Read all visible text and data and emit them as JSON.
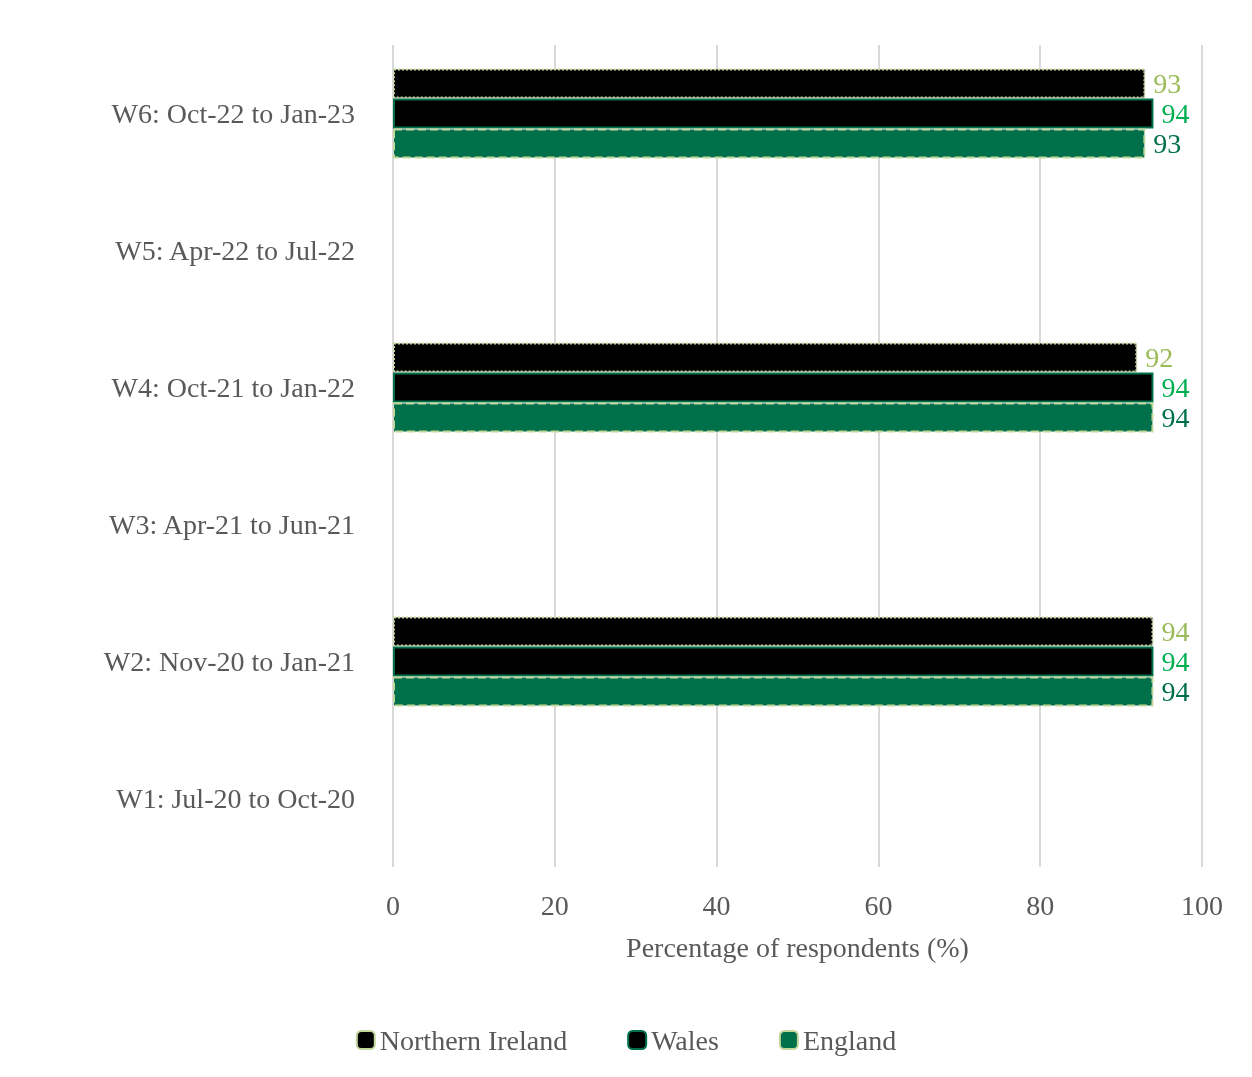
{
  "chart_data": {
    "type": "bar",
    "orientation": "horizontal",
    "xlabel": "Percentage of respondents (%)",
    "categories": [
      "W6: Oct-22 to Jan-23",
      "W5: Apr-22 to Jul-22",
      "W4: Oct-21 to Jan-22",
      "W3: Apr-21 to Jun-21",
      "W2: Nov-20 to Jan-21",
      "W1: Jul-20 to Oct-20"
    ],
    "series": [
      {
        "name": "Northern Ireland",
        "color": "#000000",
        "values": [
          93,
          null,
          92,
          null,
          94,
          null
        ]
      },
      {
        "name": "Wales",
        "color": "#000000",
        "values": [
          94,
          null,
          94,
          null,
          94,
          null
        ]
      },
      {
        "name": "England",
        "color": "#00704a",
        "values": [
          93,
          null,
          94,
          null,
          94,
          null
        ]
      }
    ],
    "xlim": [
      0,
      100
    ],
    "xticks": [
      0,
      20,
      40,
      60,
      80,
      100
    ],
    "grid": "x",
    "legend": "bottom",
    "data_labels": true
  }
}
